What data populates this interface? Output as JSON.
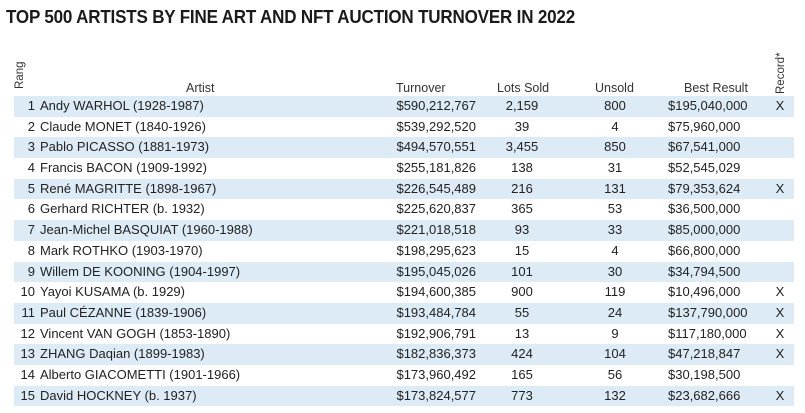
{
  "title": "TOP 500 ARTISTS BY FINE ART AND NFT AUCTION TURNOVER IN 2022",
  "headers": {
    "rank": "Rang",
    "artist": "Artist",
    "turnover": "Turnover",
    "lots": "Lots Sold",
    "unsold": "Unsold",
    "best": "Best Result",
    "record": "Record*"
  },
  "rows": [
    {
      "rank": "1",
      "artist": "Andy WARHOL (1928-1987)",
      "turnover": "$590,212,767",
      "lots": "2,159",
      "unsold": "800",
      "best": "$195,040,000",
      "record": "X"
    },
    {
      "rank": "2",
      "artist": "Claude MONET (1840-1926)",
      "turnover": "$539,292,520",
      "lots": "39",
      "unsold": "4",
      "best": "$75,960,000",
      "record": ""
    },
    {
      "rank": "3",
      "artist": "Pablo PICASSO (1881-1973)",
      "turnover": "$494,570,551",
      "lots": "3,455",
      "unsold": "850",
      "best": "$67,541,000",
      "record": ""
    },
    {
      "rank": "4",
      "artist": "Francis BACON (1909-1992)",
      "turnover": "$255,181,826",
      "lots": "138",
      "unsold": "31",
      "best": "$52,545,029",
      "record": ""
    },
    {
      "rank": "5",
      "artist": "René MAGRITTE (1898-1967)",
      "turnover": "$226,545,489",
      "lots": "216",
      "unsold": "131",
      "best": "$79,353,624",
      "record": "X"
    },
    {
      "rank": "6",
      "artist": "Gerhard RICHTER (b. 1932)",
      "turnover": "$225,620,837",
      "lots": "365",
      "unsold": "53",
      "best": "$36,500,000",
      "record": ""
    },
    {
      "rank": "7",
      "artist": "Jean-Michel BASQUIAT (1960-1988)",
      "turnover": "$221,018,518",
      "lots": "93",
      "unsold": "33",
      "best": "$85,000,000",
      "record": ""
    },
    {
      "rank": "8",
      "artist": "Mark ROTHKO (1903-1970)",
      "turnover": "$198,295,623",
      "lots": "15",
      "unsold": "4",
      "best": "$66,800,000",
      "record": ""
    },
    {
      "rank": "9",
      "artist": "Willem DE KOONING (1904-1997)",
      "turnover": "$195,045,026",
      "lots": "101",
      "unsold": "30",
      "best": "$34,794,500",
      "record": ""
    },
    {
      "rank": "10",
      "artist": "Yayoi KUSAMA (b. 1929)",
      "turnover": "$194,600,385",
      "lots": "900",
      "unsold": "119",
      "best": "$10,496,000",
      "record": "X"
    },
    {
      "rank": "11",
      "artist": "Paul CÉZANNE (1839-1906)",
      "turnover": "$193,484,784",
      "lots": "55",
      "unsold": "24",
      "best": "$137,790,000",
      "record": "X"
    },
    {
      "rank": "12",
      "artist": "Vincent VAN GOGH (1853-1890)",
      "turnover": "$192,906,791",
      "lots": "13",
      "unsold": "9",
      "best": "$117,180,000",
      "record": "X"
    },
    {
      "rank": "13",
      "artist": "ZHANG Daqian (1899-1983)",
      "turnover": "$182,836,373",
      "lots": "424",
      "unsold": "104",
      "best": "$47,218,847",
      "record": "X"
    },
    {
      "rank": "14",
      "artist": "Alberto GIACOMETTI (1901-1966)",
      "turnover": "$173,960,492",
      "lots": "165",
      "unsold": "56",
      "best": "$30,198,500",
      "record": ""
    },
    {
      "rank": "15",
      "artist": "David HOCKNEY (b. 1937)",
      "turnover": "$173,824,577",
      "lots": "773",
      "unsold": "132",
      "best": "$23,682,666",
      "record": "X"
    }
  ]
}
